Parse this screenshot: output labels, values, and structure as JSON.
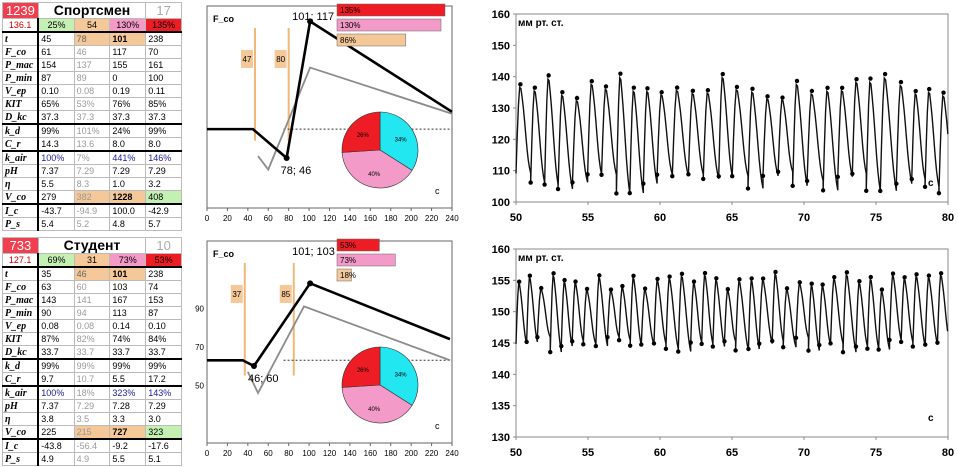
{
  "colors": {
    "red": "#ee1c24",
    "pink": "#f39ac8",
    "cyan": "#22e6f0",
    "orange": "#f4c898",
    "green": "#c4f0b4",
    "blue": "#1a1a9e",
    "gray": "#a0a0a0"
  },
  "panels": [
    {
      "header": {
        "code": "1239",
        "role": "Спортсмен",
        "n": "17"
      },
      "row2": [
        "136.1",
        "25%",
        "54",
        "130%",
        "135%"
      ],
      "rows": [
        {
          "label": "t",
          "vals": [
            "45",
            "78",
            "101",
            "238"
          ]
        },
        {
          "label": "F_co",
          "vals": [
            "61",
            "46",
            "117",
            "70"
          ]
        },
        {
          "label": "P_mac",
          "vals": [
            "154",
            "137",
            "155",
            "161"
          ]
        },
        {
          "label": "P_min",
          "vals": [
            "87",
            "89",
            "0",
            "100"
          ]
        },
        {
          "label": "V_ep",
          "vals": [
            "0.10",
            "0.08",
            "0.19",
            "0.11"
          ]
        },
        {
          "label": "KIT",
          "vals": [
            "65%",
            "53%",
            "76%",
            "85%"
          ]
        },
        {
          "label": "D_kc",
          "vals": [
            "37.3",
            "37.3",
            "37.3",
            "37.3"
          ]
        },
        {
          "label": "k_d",
          "vals": [
            "99%",
            "101%",
            "24%",
            "99%"
          ]
        },
        {
          "label": "C_r",
          "vals": [
            "14.3",
            "13.6",
            "8.0",
            "8.0"
          ]
        },
        {
          "label": "k_air",
          "vals": [
            "100%",
            "7%",
            "441%",
            "146%"
          ]
        },
        {
          "label": "pH",
          "vals": [
            "7.37",
            "7.29",
            "7.29",
            "7.29"
          ]
        },
        {
          "label": "η",
          "vals": [
            "5.5",
            "8.3",
            "1.0",
            "3.2"
          ]
        },
        {
          "label": "V_co",
          "vals": [
            "279",
            "382",
            "1228",
            "408"
          ]
        },
        {
          "label": "I_c",
          "vals": [
            "-43.7",
            "-94.9",
            "100.0",
            "-42.9"
          ]
        },
        {
          "label": "P_s",
          "vals": [
            "5.4",
            "5.2",
            "4.8",
            "5.7"
          ]
        }
      ],
      "fco_chart": {
        "type": "line",
        "ylabel": "F_co",
        "xlabel": "c",
        "xlim": [
          0,
          240
        ],
        "xticks": [
          "0",
          "20",
          "40",
          "60",
          "80",
          "100",
          "120",
          "140",
          "160",
          "180",
          "200",
          "220",
          "240"
        ],
        "peak_label": "101; 117",
        "low_label": "78; 46",
        "bands": [
          {
            "label": "47",
            "x": 47
          },
          {
            "label": "80",
            "x": 80
          }
        ],
        "black_line": {
          "x": [
            0,
            45,
            78,
            101,
            240
          ],
          "y": [
            61,
            61,
            46,
            117,
            70
          ]
        },
        "gray_line": {
          "x": [
            50,
            60,
            101,
            240
          ],
          "y": [
            47,
            40,
            93,
            69
          ]
        },
        "baseline": {
          "y": 61
        },
        "bars": [
          {
            "label": "135%",
            "value": 135,
            "color": "red"
          },
          {
            "label": "130%",
            "value": 130,
            "color": "pink"
          },
          {
            "label": "86%",
            "value": 86,
            "color": "orange"
          }
        ],
        "pie": [
          {
            "label": "34%",
            "value": 34,
            "color": "cyan"
          },
          {
            "label": "40%",
            "value": 40,
            "color": "pink"
          },
          {
            "label": "26%",
            "value": 26,
            "color": "red"
          }
        ]
      },
      "bp_chart": {
        "type": "line",
        "ylabel": "мм рт. ст.",
        "xlabel": "с",
        "xlim": [
          50,
          80
        ],
        "ylim": [
          100,
          160
        ],
        "yticks": [
          "100",
          "110",
          "120",
          "130",
          "140",
          "150",
          "160"
        ],
        "xticks": [
          "50",
          "55",
          "60",
          "65",
          "70",
          "75",
          "80"
        ],
        "period": 1.02,
        "base": 122,
        "amp": 15
      }
    },
    {
      "header": {
        "code": "733",
        "role": "Студент",
        "n": "10"
      },
      "row2": [
        "127.1",
        "69%",
        "31",
        "73%",
        "53%"
      ],
      "rows": [
        {
          "label": "t",
          "vals": [
            "35",
            "46",
            "101",
            "238"
          ]
        },
        {
          "label": "F_co",
          "vals": [
            "63",
            "60",
            "103",
            "74"
          ]
        },
        {
          "label": "P_mac",
          "vals": [
            "143",
            "141",
            "167",
            "153"
          ]
        },
        {
          "label": "P_min",
          "vals": [
            "90",
            "94",
            "113",
            "87"
          ]
        },
        {
          "label": "V_ep",
          "vals": [
            "0.08",
            "0.08",
            "0.14",
            "0.10"
          ]
        },
        {
          "label": "KIT",
          "vals": [
            "87%",
            "82%",
            "74%",
            "84%"
          ]
        },
        {
          "label": "D_kc",
          "vals": [
            "33.7",
            "33.7",
            "33.7",
            "33.7"
          ]
        },
        {
          "label": "k_d",
          "vals": [
            "99%",
            "99%",
            "99%",
            "99%"
          ]
        },
        {
          "label": "C_r",
          "vals": [
            "9.7",
            "10.7",
            "5.5",
            "17.2"
          ]
        },
        {
          "label": "k_air",
          "vals": [
            "100%",
            "18%",
            "323%",
            "143%"
          ]
        },
        {
          "label": "pH",
          "vals": [
            "7.37",
            "7.29",
            "7.28",
            "7.29"
          ]
        },
        {
          "label": "η",
          "vals": [
            "3.8",
            "3.5",
            "3.3",
            "3.0"
          ]
        },
        {
          "label": "V_co",
          "vals": [
            "225",
            "215",
            "727",
            "323"
          ]
        },
        {
          "label": "I_c",
          "vals": [
            "-43.8",
            "-56.4",
            "-9.2",
            "-17.6"
          ]
        },
        {
          "label": "P_s",
          "vals": [
            "4.9",
            "4.9",
            "5.5",
            "5.1"
          ]
        }
      ],
      "fco_chart": {
        "type": "line",
        "ylabel": "F_co",
        "xlabel": "c",
        "xlim": [
          0,
          240
        ],
        "yticks": [
          "50",
          "70",
          "90"
        ],
        "xticks": [
          "0",
          "20",
          "40",
          "60",
          "80",
          "100",
          "120",
          "140",
          "160",
          "180",
          "200",
          "220",
          "240"
        ],
        "peak_label": "101; 103",
        "low_label": "46; 60",
        "bands": [
          {
            "label": "37",
            "x": 37
          },
          {
            "label": "85",
            "x": 85
          }
        ],
        "black_line": {
          "x": [
            0,
            35,
            46,
            101,
            238
          ],
          "y": [
            63,
            63,
            60,
            103,
            74
          ]
        },
        "gray_line": {
          "x": [
            40,
            50,
            95,
            238
          ],
          "y": [
            57,
            46,
            91,
            63
          ]
        },
        "baseline": {
          "y": 63
        },
        "bars": [
          {
            "label": "53%",
            "value": 53,
            "color": "red"
          },
          {
            "label": "73%",
            "value": 73,
            "color": "pink"
          },
          {
            "label": "18%",
            "value": 18,
            "color": "orange"
          }
        ],
        "pie": [
          {
            "label": "34%",
            "value": 34,
            "color": "cyan"
          },
          {
            "label": "40%",
            "value": 40,
            "color": "pink"
          },
          {
            "label": "26%",
            "value": 26,
            "color": "red"
          }
        ]
      },
      "bp_chart": {
        "type": "line",
        "ylabel": "мм рт. ст.",
        "xlabel": "с",
        "xlim": [
          50,
          80
        ],
        "ylim": [
          130,
          160
        ],
        "yticks": [
          "130",
          "135",
          "140",
          "145",
          "150",
          "155",
          "160"
        ],
        "xticks": [
          "50",
          "55",
          "60",
          "65",
          "70",
          "75",
          "80"
        ],
        "period": 0.82,
        "base": 150,
        "amp": 5
      }
    }
  ]
}
